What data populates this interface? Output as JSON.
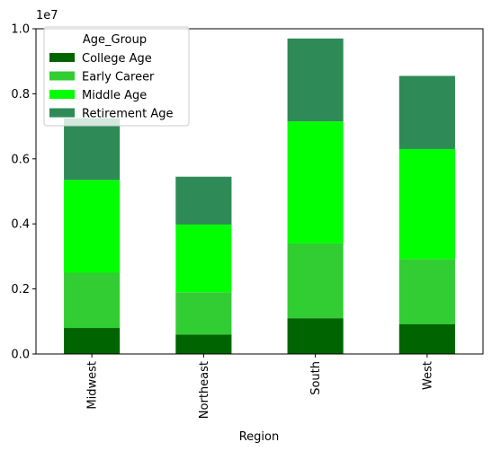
{
  "chart_data": {
    "type": "bar",
    "stacked": true,
    "title": "",
    "xlabel": "Region",
    "ylabel": "",
    "offset_text": "1e7",
    "scale": 10000000,
    "ylim": [
      0,
      1.0
    ],
    "yticks": [
      0.0,
      0.2,
      0.4,
      0.6,
      0.8,
      1.0
    ],
    "ytick_labels": [
      "0.0",
      "0.2",
      "0.4",
      "0.6",
      "0.8",
      "1.0"
    ],
    "categories": [
      "Midwest",
      "Northeast",
      "South",
      "West"
    ],
    "legend": {
      "title": "Age_Group",
      "placement": "top-left"
    },
    "grid": false,
    "series": [
      {
        "name": "College Age",
        "color": "#006400",
        "values": [
          0.08,
          0.06,
          0.11,
          0.092
        ]
      },
      {
        "name": "Early Career",
        "color": "#32CD32",
        "values": [
          0.17,
          0.13,
          0.23,
          0.2
        ]
      },
      {
        "name": "Middle Age",
        "color": "#00FF00",
        "values": [
          0.285,
          0.208,
          0.375,
          0.338
        ]
      },
      {
        "name": "Retirement Age",
        "color": "#2E8B57",
        "values": [
          0.19,
          0.147,
          0.255,
          0.225
        ]
      }
    ]
  }
}
